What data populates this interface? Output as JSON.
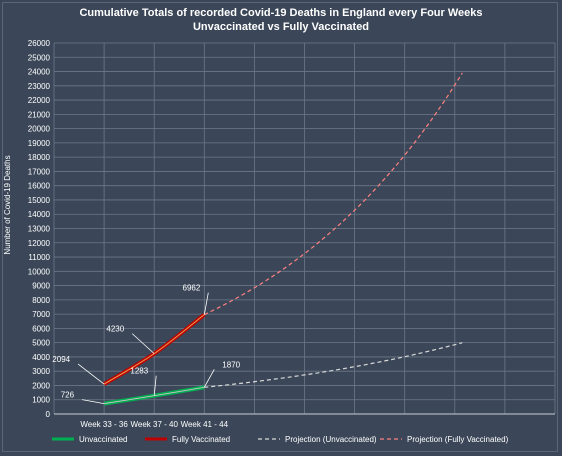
{
  "chart_data": {
    "type": "line",
    "title": "Cumulative Totals of recorded Covid-19 Deaths in England every Four Weeks",
    "subtitle": "Unvaccinated vs Fully Vaccinated",
    "xlabel": "",
    "ylabel": "Number of Covid-19 Deaths",
    "categories": [
      "Week 33 - 36",
      "Week 37 - 40",
      "Week 41 - 44"
    ],
    "ylim": [
      0,
      26000
    ],
    "ytick_step": 1000,
    "grid": true,
    "legend_position": "bottom",
    "series": [
      {
        "name": "Unvaccinated",
        "values": [
          726,
          1283,
          1870
        ],
        "color": "#00b050",
        "style": "solid"
      },
      {
        "name": "Fully Vaccinated",
        "values": [
          2094,
          4230,
          6962
        ],
        "color": "#c00000",
        "style": "solid"
      },
      {
        "name": "Projection (Unvaccinated)",
        "color": "#d9d9d9",
        "style": "dashed"
      },
      {
        "name": "Projection (Fully Vaccinated)",
        "color": "#ff8080",
        "style": "dashed"
      }
    ],
    "data_labels": [
      "726",
      "1283",
      "1870",
      "2094",
      "4230",
      "6962"
    ],
    "projection_end": {
      "unvaccinated": 5000,
      "fully_vaccinated": 23900
    }
  }
}
